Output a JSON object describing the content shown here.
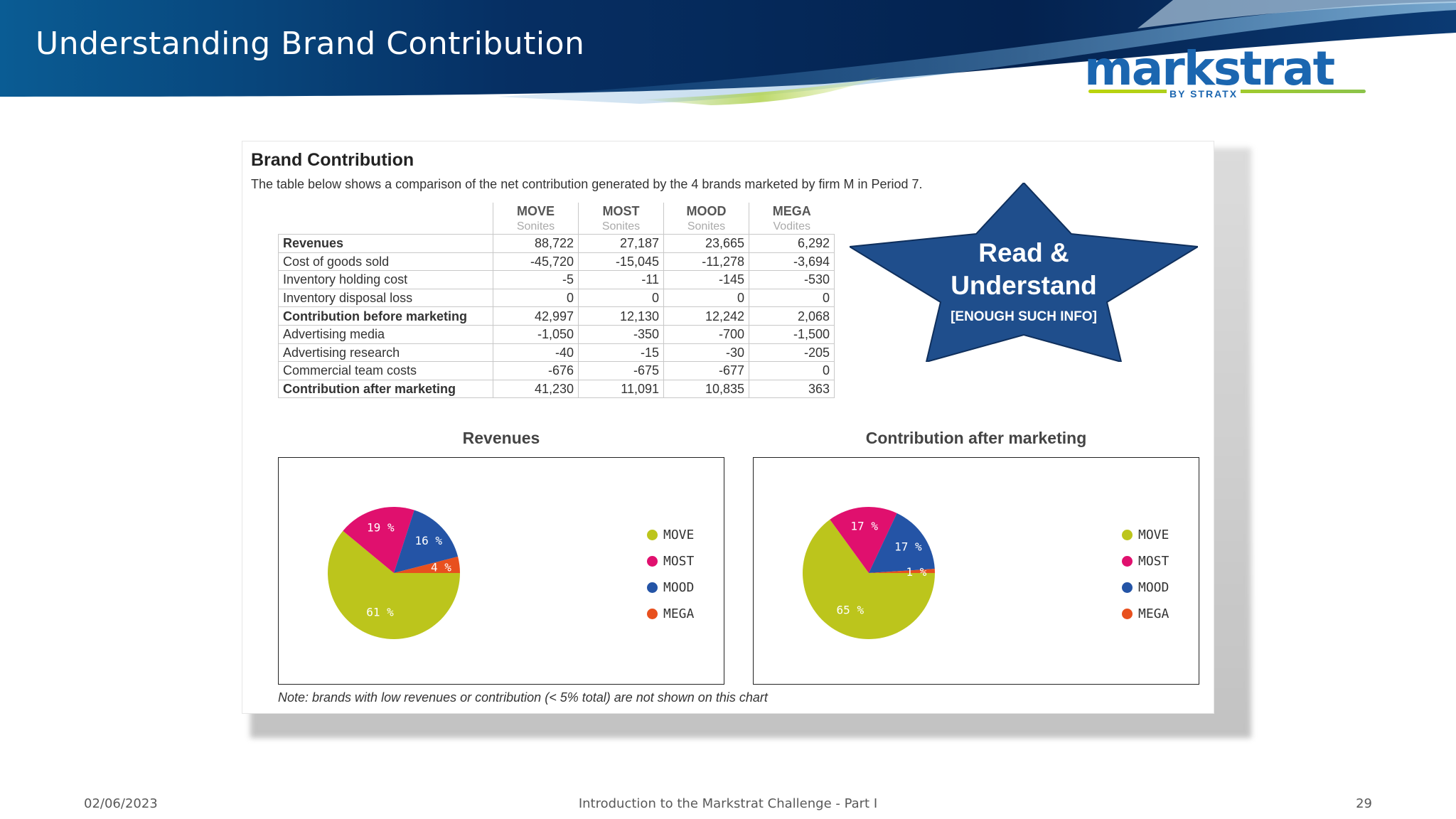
{
  "slide": {
    "title": "Understanding Brand Contribution",
    "logo_word": "markstrat",
    "logo_sub": "BY STRATX"
  },
  "panel": {
    "heading": "Brand Contribution",
    "description": "The table below shows a comparison of the net contribution generated by the 4 brands marketed by firm M in Period 7.",
    "columns": [
      {
        "name": "MOVE",
        "sub": "Sonites"
      },
      {
        "name": "MOST",
        "sub": "Sonites"
      },
      {
        "name": "MOOD",
        "sub": "Sonites"
      },
      {
        "name": "MEGA",
        "sub": "Vodites"
      }
    ],
    "rows": [
      {
        "label": "Revenues",
        "bold": true,
        "values": [
          "88,722",
          "27,187",
          "23,665",
          "6,292"
        ]
      },
      {
        "label": "Cost of goods sold",
        "bold": false,
        "values": [
          "-45,720",
          "-15,045",
          "-11,278",
          "-3,694"
        ]
      },
      {
        "label": "Inventory holding cost",
        "bold": false,
        "values": [
          "-5",
          "-11",
          "-145",
          "-530"
        ]
      },
      {
        "label": "Inventory disposal loss",
        "bold": false,
        "values": [
          "0",
          "0",
          "0",
          "0"
        ]
      },
      {
        "label": "Contribution before marketing",
        "bold": true,
        "values": [
          "42,997",
          "12,130",
          "12,242",
          "2,068"
        ]
      },
      {
        "label": "Advertising media",
        "bold": false,
        "values": [
          "-1,050",
          "-350",
          "-700",
          "-1,500"
        ]
      },
      {
        "label": "Advertising research",
        "bold": false,
        "values": [
          "-40",
          "-15",
          "-30",
          "-205"
        ]
      },
      {
        "label": "Commercial team costs",
        "bold": false,
        "values": [
          "-676",
          "-675",
          "-677",
          "0"
        ]
      },
      {
        "label": "Contribution after marketing",
        "bold": true,
        "values": [
          "41,230",
          "11,091",
          "10,835",
          "363"
        ]
      }
    ],
    "note": "Note: brands with low revenues or contribution (< 5% total) are not shown on this chart"
  },
  "callout": {
    "line1": "Read &",
    "line2": "Understand",
    "line3": "[ENOUGH SUCH INFO]",
    "color": "#1f4e8c"
  },
  "chart_data": [
    {
      "type": "pie",
      "title": "Revenues",
      "categories": [
        "MOVE",
        "MOST",
        "MOOD",
        "MEGA"
      ],
      "values": [
        61,
        19,
        16,
        4
      ],
      "labels": [
        "61 %",
        "19 %",
        "16 %",
        "4 %"
      ],
      "colors": [
        "#bcc51c",
        "#e0106e",
        "#2454a6",
        "#e8501e"
      ]
    },
    {
      "type": "pie",
      "title": "Contribution after marketing",
      "categories": [
        "MOVE",
        "MOST",
        "MOOD",
        "MEGA"
      ],
      "values": [
        65,
        17,
        17,
        1
      ],
      "labels": [
        "65 %",
        "17 %",
        "17 %",
        "1 %"
      ],
      "colors": [
        "#bcc51c",
        "#e0106e",
        "#2454a6",
        "#e8501e"
      ]
    }
  ],
  "footer": {
    "date": "02/06/2023",
    "center": "Introduction to the Markstrat Challenge - Part I",
    "page": "29"
  }
}
